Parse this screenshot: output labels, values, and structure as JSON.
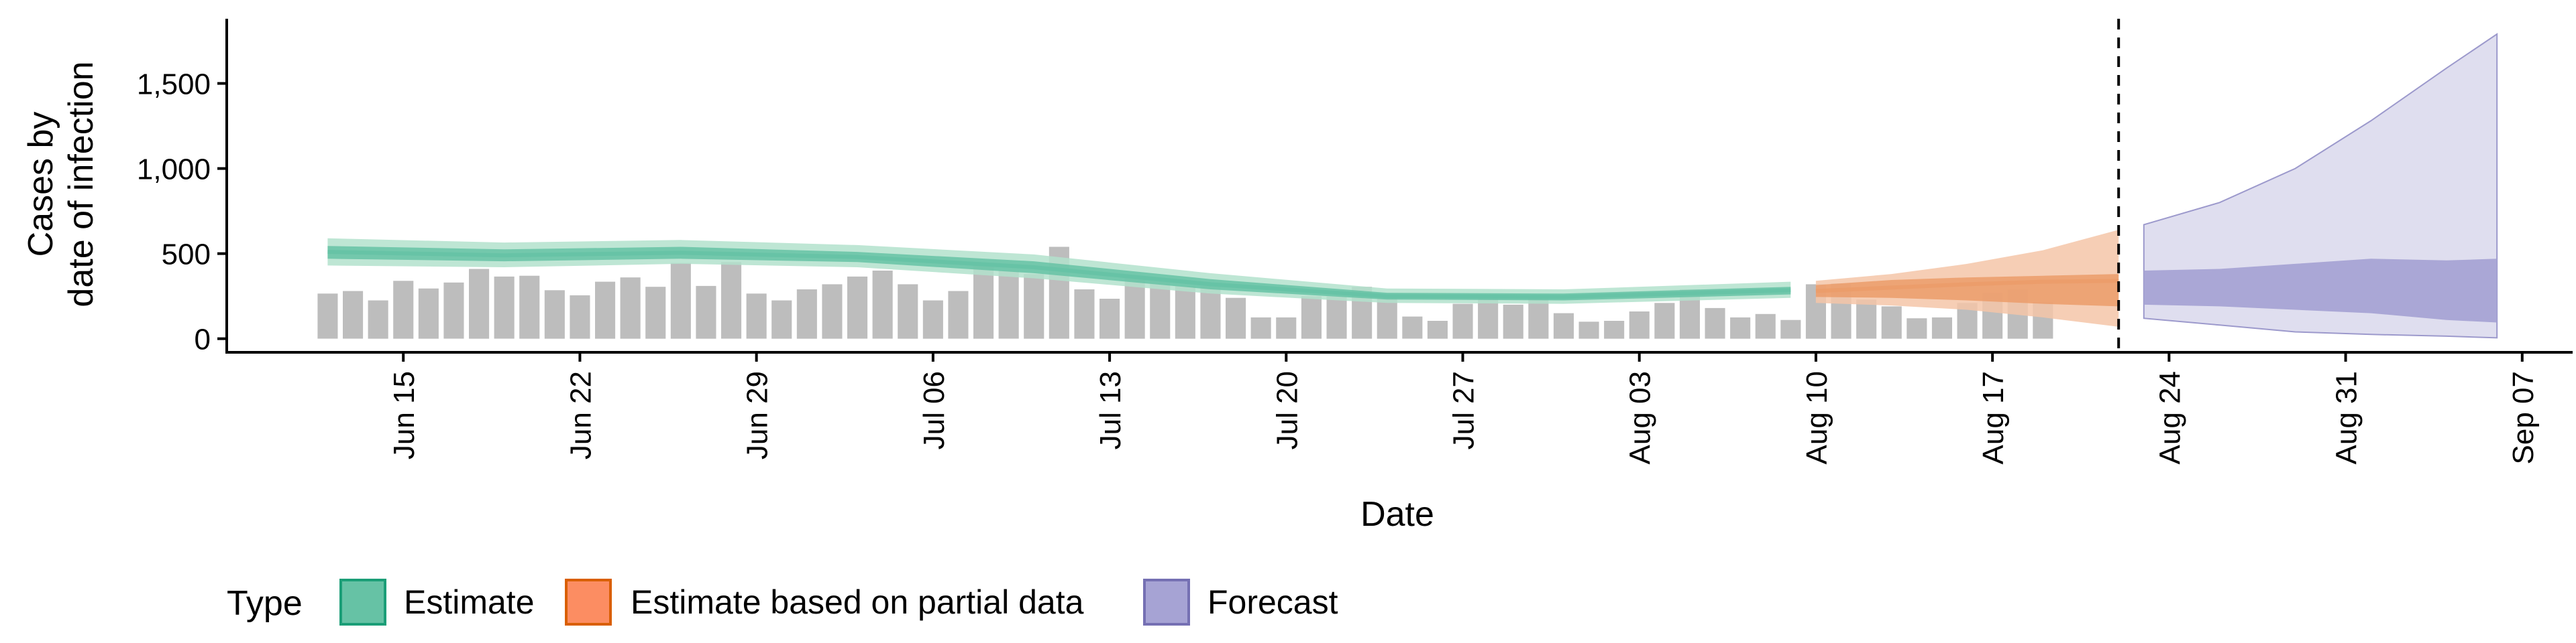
{
  "chart_data": {
    "type": "area",
    "xlabel": "Date",
    "ylabel_lines": [
      "Cases by",
      "date of infection"
    ],
    "x_ticks": [
      "Jun 15",
      "Jun 22",
      "Jun 29",
      "Jul 06",
      "Jul 13",
      "Jul 20",
      "Jul 27",
      "Aug 03",
      "Aug 10",
      "Aug 17",
      "Aug 24",
      "Aug 31",
      "Sep 07"
    ],
    "y_ticks": [
      "0",
      "500",
      "1,000",
      "1,500"
    ],
    "x_range": [
      "2020-06-08",
      "2020-09-09"
    ],
    "ylim": [
      -80,
      1880
    ],
    "forecast_date": "2020-08-22",
    "legend": {
      "title": "Type",
      "position": "bottom",
      "entries": [
        {
          "label": "Estimate",
          "fill": "#66c2a5",
          "stroke": "#1b9e77"
        },
        {
          "label": "Estimate based on partial data",
          "fill": "#fc8d62",
          "stroke": "#d95f02"
        },
        {
          "label": "Forecast",
          "fill": "#a6a3d4",
          "stroke": "#7570b3"
        }
      ]
    },
    "colors": {
      "bars": "#bdbdbd",
      "estimate_outer": "#b3e2cd",
      "estimate_inner": "#66c2a5",
      "partial_outer": "#f4c6a8",
      "partial_inner": "#eb9c6a",
      "forecast_outer": "#d9d8ec",
      "forecast_inner": "#a6a3d4",
      "forecast_line": "#9c99cc"
    },
    "reported_cases": {
      "start_date": "2020-06-12",
      "values": [
        265,
        280,
        225,
        340,
        295,
        330,
        410,
        365,
        370,
        285,
        255,
        335,
        360,
        305,
        445,
        310,
        450,
        265,
        225,
        290,
        320,
        365,
        400,
        320,
        225,
        280,
        440,
        400,
        380,
        540,
        290,
        235,
        360,
        340,
        310,
        310,
        240,
        125,
        125,
        250,
        250,
        305,
        260,
        130,
        105,
        205,
        250,
        200,
        250,
        150,
        100,
        105,
        160,
        210,
        290,
        180,
        125,
        145,
        110,
        320,
        325,
        230,
        190,
        120,
        125,
        210,
        270,
        290,
        215
      ]
    },
    "series": [
      {
        "name": "Estimate",
        "dates": [
          "2020-06-12",
          "2020-06-19",
          "2020-06-26",
          "2020-07-03",
          "2020-07-10",
          "2020-07-17",
          "2020-07-24",
          "2020-07-31",
          "2020-08-09"
        ],
        "median": [
          510,
          490,
          505,
          480,
          420,
          320,
          250,
          245,
          285
        ],
        "inner_lower": [
          470,
          455,
          470,
          450,
          385,
          290,
          230,
          225,
          260
        ],
        "inner_upper": [
          545,
          525,
          540,
          510,
          455,
          350,
          270,
          265,
          305
        ],
        "outer_lower": [
          430,
          420,
          440,
          420,
          355,
          265,
          210,
          205,
          240
        ],
        "outer_upper": [
          590,
          565,
          580,
          550,
          495,
          385,
          295,
          290,
          335
        ]
      },
      {
        "name": "Estimate based on partial data",
        "dates": [
          "2020-08-10",
          "2020-08-13",
          "2020-08-16",
          "2020-08-19",
          "2020-08-22"
        ],
        "median": [
          280,
          300,
          320,
          335,
          340
        ],
        "inner_lower": [
          245,
          240,
          225,
          205,
          190
        ],
        "inner_upper": [
          315,
          345,
          360,
          370,
          380
        ],
        "outer_lower": [
          210,
          195,
          170,
          125,
          70
        ],
        "outer_upper": [
          340,
          380,
          440,
          520,
          640
        ]
      },
      {
        "name": "Forecast",
        "dates": [
          "2020-08-23",
          "2020-08-26",
          "2020-08-29",
          "2020-09-01",
          "2020-09-04",
          "2020-09-06"
        ],
        "inner_lower": [
          200,
          190,
          170,
          150,
          110,
          95
        ],
        "inner_upper": [
          400,
          410,
          440,
          470,
          460,
          470
        ],
        "outer_lower": [
          120,
          80,
          40,
          25,
          15,
          5
        ],
        "outer_upper": [
          670,
          800,
          1000,
          1280,
          1590,
          1790
        ]
      }
    ]
  }
}
